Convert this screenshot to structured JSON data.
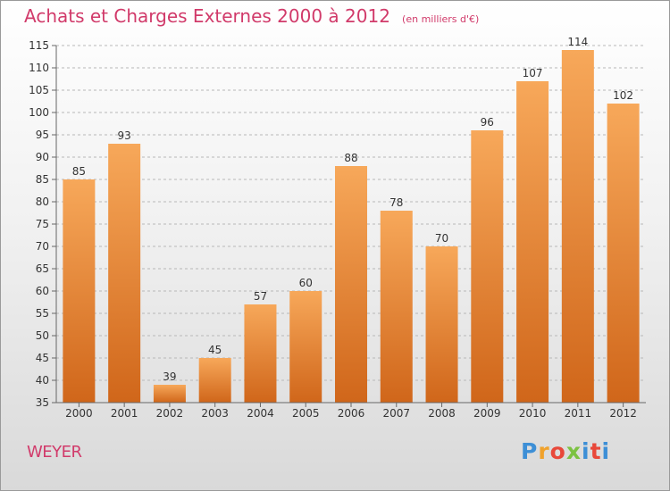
{
  "header": {
    "title": "Achats et Charges Externes 2000 à 2012",
    "subtitle": "(en milliers d'€)"
  },
  "commune": "WEYER",
  "logo_text": [
    "P",
    "r",
    "o",
    "x",
    "i",
    "t",
    "i"
  ],
  "colors": {
    "title": "#d13a6a",
    "bar_top": "#f7a85a",
    "bar_bottom": "#d0661a",
    "grid": "#b8b8b8"
  },
  "chart_data": {
    "type": "bar",
    "categories": [
      "2000",
      "2001",
      "2002",
      "2003",
      "2004",
      "2005",
      "2006",
      "2007",
      "2008",
      "2009",
      "2010",
      "2011",
      "2012"
    ],
    "values": [
      85,
      93,
      39,
      45,
      57,
      60,
      88,
      78,
      70,
      96,
      107,
      114,
      102
    ],
    "data_labels": [
      "85",
      "93",
      "39",
      "45",
      "57",
      "60",
      "88",
      "78",
      "70",
      "96",
      "107",
      "114",
      "102"
    ],
    "yticks": [
      "35",
      "40",
      "45",
      "50",
      "55",
      "60",
      "65",
      "70",
      "75",
      "80",
      "85",
      "90",
      "95",
      "100",
      "105",
      "110",
      "115"
    ],
    "ylim": [
      35,
      115
    ],
    "grid": true,
    "legend": "none"
  }
}
